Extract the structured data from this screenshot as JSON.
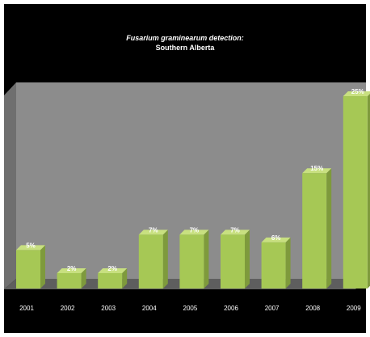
{
  "chart_data": {
    "type": "bar",
    "title_line1": "Fusarium graminearum detection:",
    "title_line2": "Southern Alberta",
    "xlabel": "",
    "ylabel": "",
    "categories": [
      "2001",
      "2002",
      "2003",
      "2004",
      "2005",
      "2006",
      "2007",
      "2008",
      "2009"
    ],
    "values": [
      5,
      2,
      2,
      7,
      7,
      7,
      6,
      15,
      25
    ],
    "data_labels": [
      "5%",
      "2%",
      "2%",
      "7%",
      "7%",
      "7%",
      "6%",
      "15%",
      "25%"
    ],
    "ylim": [
      0,
      27
    ],
    "grid": false,
    "legend": "none",
    "three_d": true
  },
  "colors": {
    "background": "#000000",
    "plot_wall": "#8c8c8c",
    "side_wall": "#6f6f6f",
    "floor": "#5e5e5e",
    "bar_front": "#a6c855",
    "bar_top": "#c8e080",
    "bar_side": "#7e9a3c",
    "text": "#ffffff"
  }
}
